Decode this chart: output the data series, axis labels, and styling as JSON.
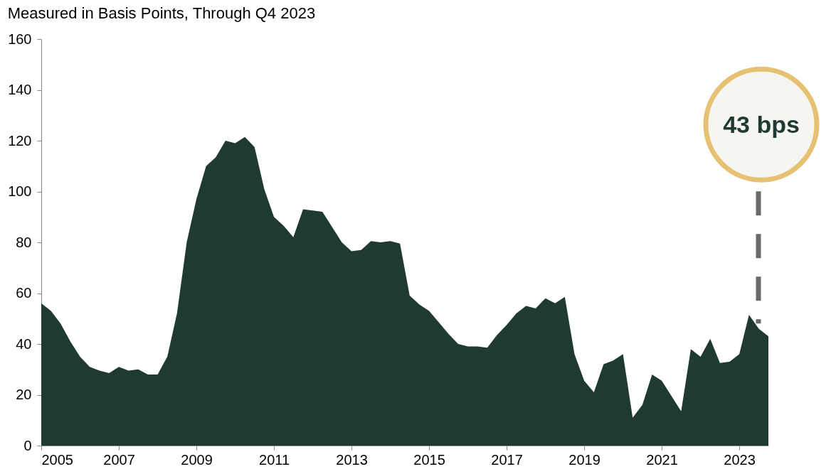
{
  "chart_data": {
    "type": "area",
    "title": "Measured in Basis Points, Through Q4 2023",
    "color": "#1f3a33",
    "x": [
      2005,
      2005.25,
      2005.5,
      2005.75,
      2006,
      2006.25,
      2006.5,
      2006.75,
      2007,
      2007.25,
      2007.5,
      2007.75,
      2008,
      2008.25,
      2008.5,
      2008.75,
      2009,
      2009.25,
      2009.5,
      2009.75,
      2010,
      2010.25,
      2010.5,
      2010.75,
      2011,
      2011.25,
      2011.5,
      2011.75,
      2012,
      2012.25,
      2012.5,
      2012.75,
      2013,
      2013.25,
      2013.5,
      2013.75,
      2014,
      2014.25,
      2014.5,
      2014.75,
      2015,
      2015.25,
      2015.5,
      2015.75,
      2016,
      2016.25,
      2016.5,
      2016.75,
      2017,
      2017.25,
      2017.5,
      2017.75,
      2018,
      2018.25,
      2018.5,
      2018.75,
      2019,
      2019.25,
      2019.5,
      2019.75,
      2020,
      2020.25,
      2020.5,
      2020.75,
      2021,
      2021.25,
      2021.5,
      2021.75,
      2022,
      2022.25,
      2022.5,
      2022.75,
      2023,
      2023.25,
      2023.5,
      2023.75
    ],
    "values": [
      56,
      53,
      48,
      41,
      35,
      31,
      29.5,
      28.5,
      31,
      29.5,
      30,
      28,
      28,
      35,
      52,
      80,
      97,
      110,
      113.5,
      120,
      119,
      121.5,
      117.5,
      101,
      90,
      86.5,
      82,
      93,
      92.5,
      92,
      86,
      80,
      76.5,
      77,
      80.5,
      80,
      80.5,
      79.5,
      59,
      55.5,
      53,
      48.5,
      44,
      40,
      39,
      39,
      38.5,
      43.5,
      47.5,
      52,
      55,
      54,
      58,
      56,
      58.5,
      36,
      25.5,
      21,
      32,
      33.5,
      36,
      11,
      16,
      28,
      25.5,
      19.5,
      13.5,
      38,
      35,
      42,
      32.5,
      33,
      36,
      51.5,
      46,
      43
    ],
    "xlim": [
      2005,
      2023.75
    ],
    "xticks": [
      2005,
      2007,
      2009,
      2011,
      2013,
      2015,
      2017,
      2019,
      2021,
      2023
    ],
    "ylim": [
      0,
      160
    ],
    "yticks": [
      0,
      20,
      40,
      60,
      80,
      100,
      120,
      140,
      160
    ],
    "annotations": [
      "43 bps"
    ]
  }
}
